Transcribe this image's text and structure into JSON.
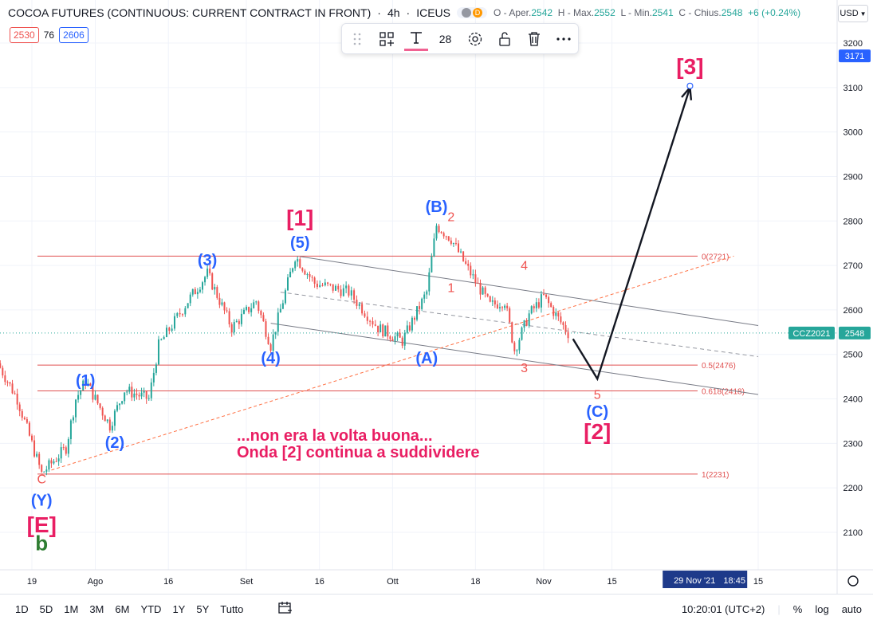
{
  "header": {
    "symbol": "COCOA FUTURES (CONTINUOUS: CURRENT CONTRACT IN FRONT)",
    "interval": "4h",
    "exchange": "ICEUS",
    "d_badge": "D",
    "ohlc_o_label": "O - Aper.",
    "ohlc_o": "2542",
    "ohlc_h_label": "H - Max.",
    "ohlc_h": "2552",
    "ohlc_l_label": "L - Min.",
    "ohlc_l": "2541",
    "ohlc_c_label": "C - Chius.",
    "ohlc_c": "2548",
    "change": "+6 (+0.24%)",
    "currency": "USD"
  },
  "legend": {
    "left": "2530",
    "mid": "76",
    "right": "2606"
  },
  "toolbar": {
    "font_size": "28"
  },
  "colors": {
    "up": "#26a69a",
    "down": "#ef5350",
    "wave_blue": "#2962ff",
    "wave_pink": "#e91e63",
    "fib_red": "#e05050",
    "channel": "#787b86",
    "green": "#2e7d32"
  },
  "chart_data": {
    "type": "candlestick",
    "symbol_label": "CCZ2021",
    "last_price": 2548,
    "target_price": 3171,
    "y_ticks": [
      2100,
      2200,
      2300,
      2400,
      2500,
      2600,
      2700,
      2800,
      2900,
      3000,
      3100,
      3200
    ],
    "x_ticks": [
      "19",
      "Ago",
      "16",
      "Set",
      "16",
      "Ott",
      "18",
      "Nov",
      "15",
      "15"
    ],
    "x_dates": [
      "2021-07-19",
      "2021-08-01",
      "2021-08-16",
      "2021-09-01",
      "2021-09-16",
      "2021-10-01",
      "2021-10-18",
      "2021-11-01",
      "2021-11-15",
      "2021-12-15"
    ],
    "cursor_date": "29 Nov '21",
    "cursor_time": "18:45",
    "price_path": [
      [
        "2021-07-12",
        2480
      ],
      [
        "2021-07-16",
        2400
      ],
      [
        "2021-07-21",
        2232
      ],
      [
        "2021-07-26",
        2290
      ],
      [
        "2021-07-28",
        2400
      ],
      [
        "2021-07-30",
        2440
      ],
      [
        "2021-08-04",
        2340
      ],
      [
        "2021-08-07",
        2420
      ],
      [
        "2021-08-12",
        2400
      ],
      [
        "2021-08-14",
        2520
      ],
      [
        "2021-08-20",
        2620
      ],
      [
        "2021-08-24",
        2682
      ],
      [
        "2021-08-29",
        2560
      ],
      [
        "2021-09-03",
        2620
      ],
      [
        "2021-09-06",
        2520
      ],
      [
        "2021-09-11",
        2721
      ],
      [
        "2021-09-15",
        2660
      ],
      [
        "2021-09-22",
        2640
      ],
      [
        "2021-09-28",
        2560
      ],
      [
        "2021-10-03",
        2530
      ],
      [
        "2021-10-08",
        2640
      ],
      [
        "2021-10-10",
        2790
      ],
      [
        "2021-10-13",
        2760
      ],
      [
        "2021-10-16",
        2700
      ],
      [
        "2021-10-21",
        2610
      ],
      [
        "2021-10-24",
        2620
      ],
      [
        "2021-10-26",
        2510
      ],
      [
        "2021-10-29",
        2590
      ],
      [
        "2021-11-01",
        2630
      ],
      [
        "2021-11-04",
        2580
      ],
      [
        "2021-11-06",
        2548
      ]
    ],
    "fib_levels": [
      {
        "label": "0(2721)",
        "value": 2721
      },
      {
        "label": "0.5(2476)",
        "value": 2476
      },
      {
        "label": "0.618(2418)",
        "value": 2418
      },
      {
        "label": "1(2231)",
        "value": 2231
      }
    ],
    "wave_labels": [
      {
        "text": "(1)",
        "date": "2021-07-30",
        "price": 2430,
        "color": "blue"
      },
      {
        "text": "(2)",
        "date": "2021-08-05",
        "price": 2290,
        "color": "blue"
      },
      {
        "text": "(3)",
        "date": "2021-08-24",
        "price": 2700,
        "color": "blue"
      },
      {
        "text": "(4)",
        "date": "2021-09-06",
        "price": 2480,
        "color": "blue"
      },
      {
        "text": "(5)",
        "date": "2021-09-12",
        "price": 2740,
        "color": "blue"
      },
      {
        "text": "[1]",
        "date": "2021-09-12",
        "price": 2790,
        "color": "pink"
      },
      {
        "text": "(B)",
        "date": "2021-10-10",
        "price": 2820,
        "color": "blue"
      },
      {
        "text": "2",
        "date": "2021-10-13",
        "price": 2800,
        "color": "red"
      },
      {
        "text": "(A)",
        "date": "2021-10-08",
        "price": 2480,
        "color": "blue"
      },
      {
        "text": "1",
        "date": "2021-10-13",
        "price": 2640,
        "color": "red"
      },
      {
        "text": "4",
        "date": "2021-10-28",
        "price": 2690,
        "color": "red"
      },
      {
        "text": "3",
        "date": "2021-10-28",
        "price": 2460,
        "color": "red"
      },
      {
        "text": "5",
        "date": "2021-11-12",
        "price": 2400,
        "color": "red"
      },
      {
        "text": "(C)",
        "date": "2021-11-12",
        "price": 2360,
        "color": "blue"
      },
      {
        "text": "[2]",
        "date": "2021-11-12",
        "price": 2310,
        "color": "pink"
      },
      {
        "text": "[3]",
        "date": "2021-12-01",
        "price": 3130,
        "color": "pink"
      },
      {
        "text": "C",
        "date": "2021-07-21",
        "price": 2210,
        "color": "red"
      },
      {
        "text": "(Y)",
        "date": "2021-07-21",
        "price": 2160,
        "color": "blue"
      },
      {
        "text": "[E]",
        "date": "2021-07-21",
        "price": 2100,
        "color": "pink"
      },
      {
        "text": "b",
        "date": "2021-07-21",
        "price": 2060,
        "color": "green"
      }
    ],
    "projection": [
      [
        "2021-11-07",
        2535
      ],
      [
        "2021-11-12",
        2445
      ],
      [
        "2021-12-01",
        3100
      ]
    ],
    "channel_lines": [
      {
        "from": [
          "2021-09-12",
          2720
        ],
        "to": [
          "2021-12-15",
          2565
        ]
      },
      {
        "from": [
          "2021-09-08",
          2640
        ],
        "to": [
          "2021-12-15",
          2495
        ]
      },
      {
        "from": [
          "2021-09-06",
          2570
        ],
        "to": [
          "2021-12-15",
          2410
        ]
      }
    ],
    "trend_line": {
      "from": [
        "2021-07-23",
        2240
      ],
      "to": [
        "2021-12-10",
        2721
      ]
    },
    "annotation": {
      "line1": "...non era la volta buona...",
      "line2": "Onda [2] continua a suddividere"
    }
  },
  "bottom": {
    "timeframes": [
      "1D",
      "5D",
      "1M",
      "3M",
      "6M",
      "YTD",
      "1Y",
      "5Y",
      "Tutto"
    ],
    "clock": "10:20:01 (UTC+2)",
    "percent": "%",
    "log": "log",
    "auto": "auto"
  }
}
